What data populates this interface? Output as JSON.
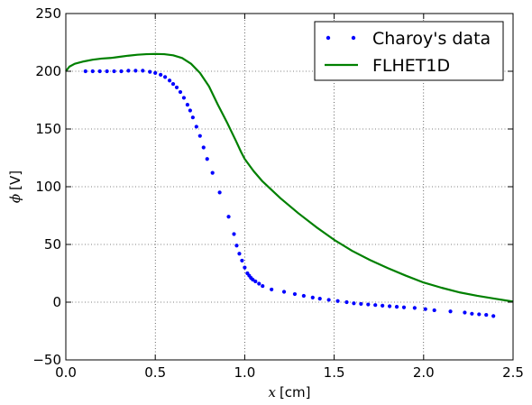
{
  "chart_data": {
    "type": "line",
    "title": "",
    "xlabel_var": "x",
    "xlabel_unit": "[cm]",
    "ylabel_var": "ϕ",
    "ylabel_unit": "[V]",
    "xlim": [
      0.0,
      2.5
    ],
    "ylim": [
      -50,
      250
    ],
    "xticks": [
      0.0,
      0.5,
      1.0,
      1.5,
      2.0,
      2.5
    ],
    "xtick_labels": [
      "0.0",
      "0.5",
      "1.0",
      "1.5",
      "2.0",
      "2.5"
    ],
    "yticks": [
      -50,
      0,
      50,
      100,
      150,
      200,
      250
    ],
    "ytick_labels": [
      "−50",
      "0",
      "50",
      "100",
      "150",
      "200",
      "250"
    ],
    "grid": true,
    "legend_position": "top-right",
    "series": [
      {
        "name": "Charoy's data",
        "style": "markers",
        "color": "#0000ff",
        "points": [
          [
            0.11,
            200
          ],
          [
            0.15,
            200
          ],
          [
            0.19,
            200
          ],
          [
            0.23,
            200
          ],
          [
            0.27,
            200
          ],
          [
            0.31,
            200
          ],
          [
            0.35,
            200.5
          ],
          [
            0.39,
            200.5
          ],
          [
            0.43,
            200.5
          ],
          [
            0.47,
            199.5
          ],
          [
            0.5,
            198.5
          ],
          [
            0.53,
            197
          ],
          [
            0.555,
            195
          ],
          [
            0.58,
            192
          ],
          [
            0.6,
            189
          ],
          [
            0.62,
            186
          ],
          [
            0.64,
            182
          ],
          [
            0.66,
            177
          ],
          [
            0.68,
            171
          ],
          [
            0.695,
            166
          ],
          [
            0.71,
            160
          ],
          [
            0.73,
            152
          ],
          [
            0.75,
            144
          ],
          [
            0.77,
            134
          ],
          [
            0.79,
            124
          ],
          [
            0.82,
            112
          ],
          [
            0.86,
            95
          ],
          [
            0.91,
            74
          ],
          [
            0.94,
            59
          ],
          [
            0.955,
            49
          ],
          [
            0.97,
            42
          ],
          [
            0.985,
            36
          ],
          [
            1.0,
            30
          ],
          [
            1.015,
            25
          ],
          [
            1.025,
            23
          ],
          [
            1.035,
            21
          ],
          [
            1.045,
            19.5
          ],
          [
            1.06,
            18
          ],
          [
            1.08,
            16
          ],
          [
            1.1,
            14
          ],
          [
            1.15,
            11
          ],
          [
            1.22,
            9
          ],
          [
            1.28,
            7
          ],
          [
            1.33,
            5.5
          ],
          [
            1.38,
            4
          ],
          [
            1.42,
            3
          ],
          [
            1.47,
            2
          ],
          [
            1.52,
            1
          ],
          [
            1.57,
            0
          ],
          [
            1.61,
            -1
          ],
          [
            1.65,
            -1.5
          ],
          [
            1.69,
            -2
          ],
          [
            1.73,
            -2.5
          ],
          [
            1.77,
            -3
          ],
          [
            1.81,
            -3.5
          ],
          [
            1.85,
            -4
          ],
          [
            1.89,
            -4.5
          ],
          [
            1.95,
            -5
          ],
          [
            2.01,
            -6
          ],
          [
            2.06,
            -7
          ],
          [
            2.15,
            -8
          ],
          [
            2.23,
            -9
          ],
          [
            2.27,
            -10
          ],
          [
            2.31,
            -10.5
          ],
          [
            2.35,
            -11
          ],
          [
            2.39,
            -12
          ]
        ]
      },
      {
        "name": "FLHET1D",
        "style": "line",
        "color": "#008000",
        "points": [
          [
            0.0,
            200
          ],
          [
            0.02,
            204
          ],
          [
            0.05,
            206.5
          ],
          [
            0.1,
            208.5
          ],
          [
            0.15,
            210
          ],
          [
            0.2,
            211
          ],
          [
            0.25,
            211.5
          ],
          [
            0.3,
            212.5
          ],
          [
            0.35,
            213.5
          ],
          [
            0.4,
            214.3
          ],
          [
            0.45,
            214.8
          ],
          [
            0.5,
            215
          ],
          [
            0.55,
            214.8
          ],
          [
            0.6,
            213.8
          ],
          [
            0.65,
            211.5
          ],
          [
            0.7,
            206.5
          ],
          [
            0.75,
            198.5
          ],
          [
            0.8,
            187
          ],
          [
            0.85,
            171
          ],
          [
            0.9,
            156
          ],
          [
            0.95,
            140
          ],
          [
            0.98,
            130
          ],
          [
            1.0,
            124
          ],
          [
            1.05,
            113.5
          ],
          [
            1.1,
            104.5
          ],
          [
            1.2,
            90
          ],
          [
            1.3,
            77
          ],
          [
            1.4,
            65
          ],
          [
            1.5,
            54
          ],
          [
            1.6,
            44.5
          ],
          [
            1.7,
            36.5
          ],
          [
            1.8,
            29.5
          ],
          [
            1.9,
            23
          ],
          [
            2.0,
            17
          ],
          [
            2.1,
            12.5
          ],
          [
            2.2,
            8.5
          ],
          [
            2.3,
            5.5
          ],
          [
            2.4,
            3
          ],
          [
            2.5,
            0.5
          ]
        ]
      }
    ]
  }
}
